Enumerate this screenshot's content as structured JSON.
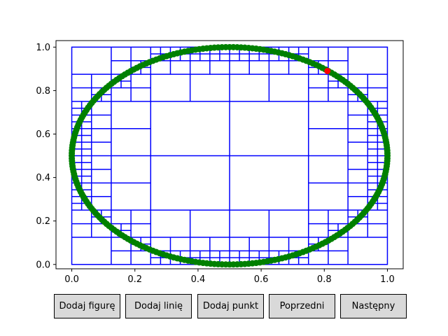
{
  "buttons": {
    "add_figure": "Dodaj figurę",
    "add_line": "Dodaj linię",
    "add_point": "Dodaj punkt",
    "previous": "Poprzedni",
    "next": "Następny"
  },
  "chart_data": {
    "type": "scatter",
    "title": "",
    "xlabel": "",
    "ylabel": "",
    "xlim": [
      -0.05,
      1.05
    ],
    "ylim": [
      -0.02,
      1.03
    ],
    "x_ticks": [
      "0.0",
      "0.2",
      "0.4",
      "0.6",
      "0.8",
      "1.0"
    ],
    "y_ticks": [
      "0.0",
      "0.2",
      "0.4",
      "0.6",
      "0.8",
      "1.0"
    ],
    "grid": false,
    "legend": "none",
    "series": [
      {
        "role": "points",
        "color": "#008000",
        "marker": "circle",
        "shape": "ellipse",
        "center": [
          0.5,
          0.5
        ],
        "radius": [
          0.5,
          0.5
        ]
      }
    ],
    "highlight_points": [
      {
        "x": 0.81,
        "y": 0.89,
        "color": "#ff0000"
      }
    ],
    "quadtree": {
      "color": "#0000ff",
      "bounds": [
        0,
        0,
        1,
        1
      ],
      "max_depth": 7
    }
  }
}
